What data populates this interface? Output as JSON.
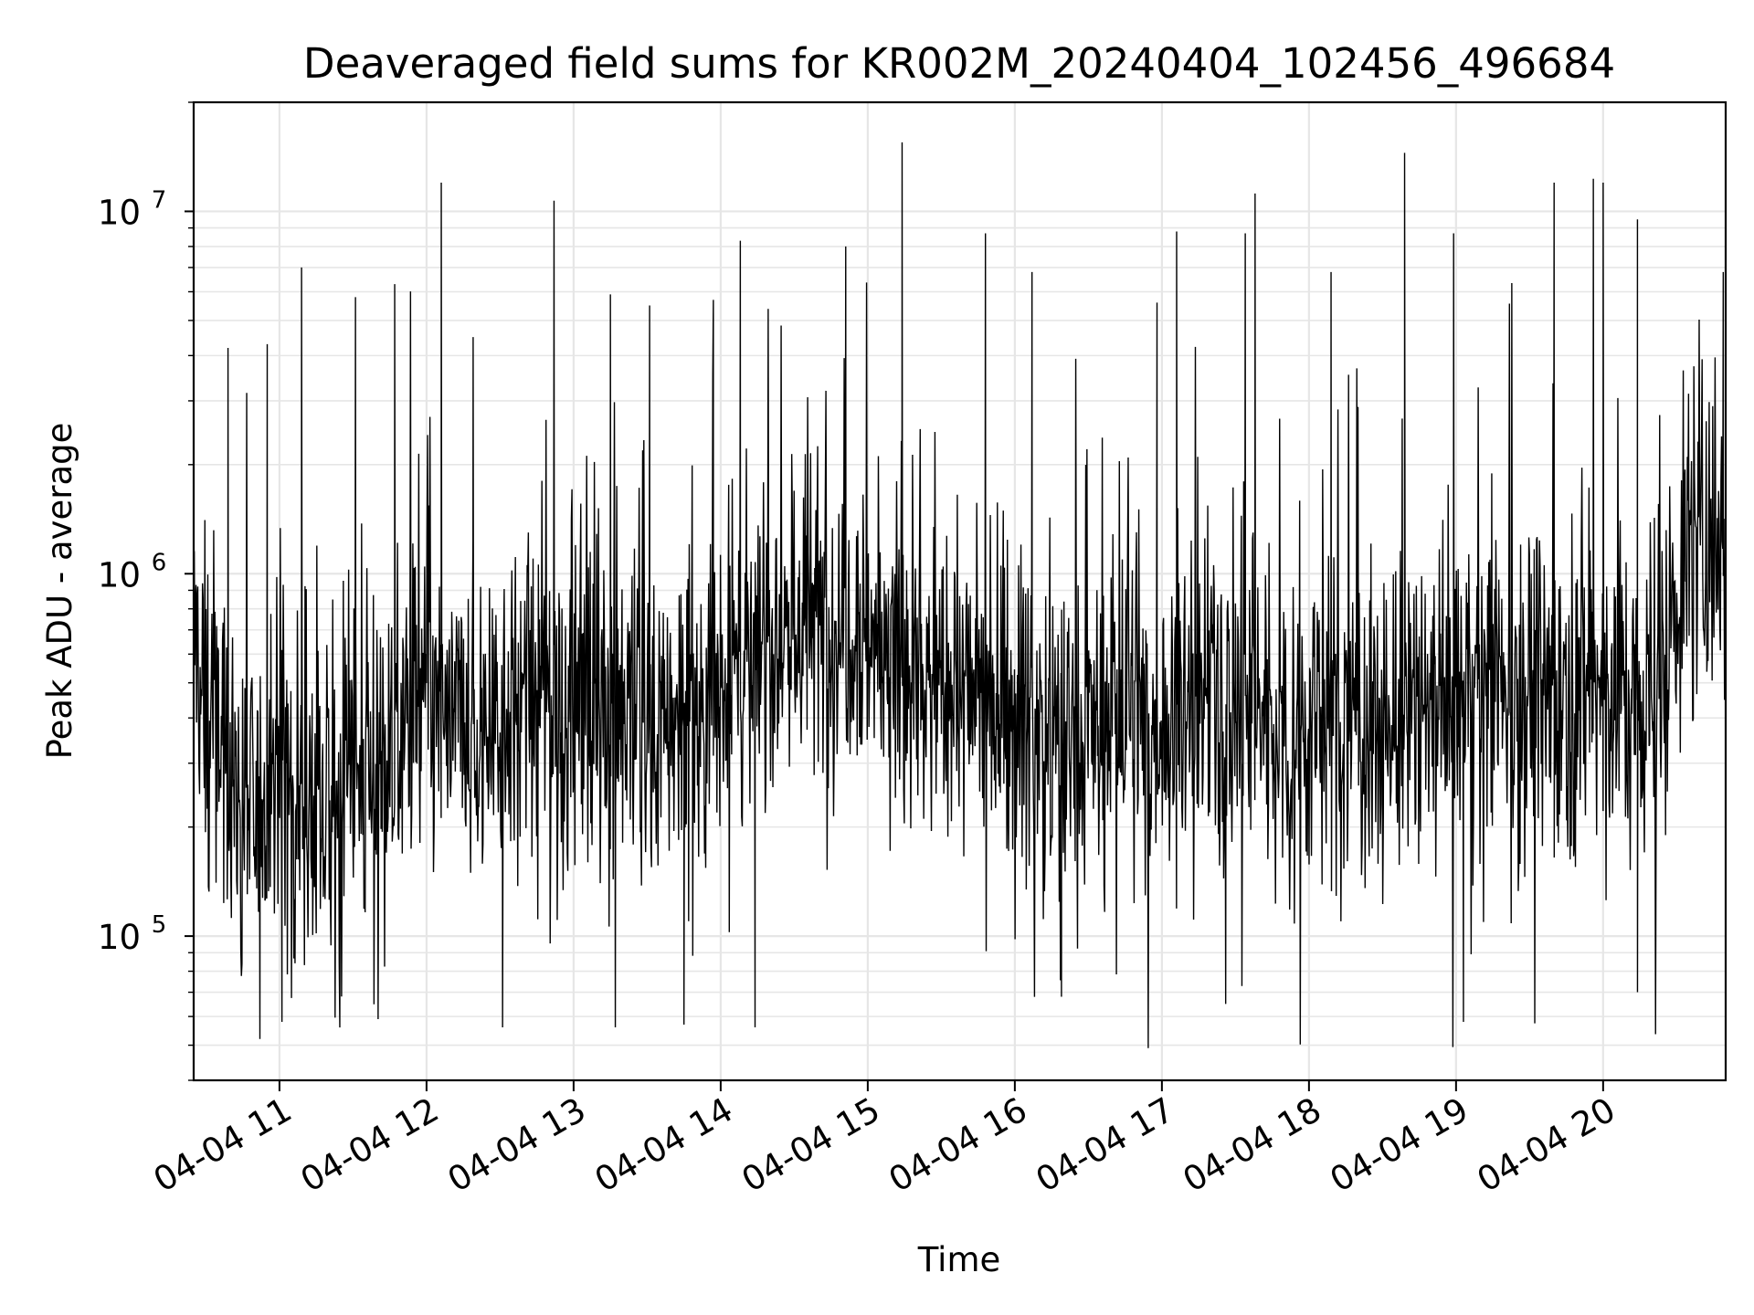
{
  "chart_data": {
    "type": "line",
    "title": "Deaveraged field sums for KR002M_20240404_102456_496684",
    "xlabel": "Time",
    "ylabel": "Peak ADU - average",
    "yscale": "log",
    "xlim": [
      "04-04 10:25",
      "04-04 20:50"
    ],
    "ylim": [
      40000,
      20000000
    ],
    "grid": true,
    "line_color": "#000000",
    "grid_color": "#e6e6e6",
    "x_tick_labels": [
      "04-04 11",
      "04-04 12",
      "04-04 13",
      "04-04 14",
      "04-04 15",
      "04-04 16",
      "04-04 17",
      "04-04 18",
      "04-04 19",
      "04-04 20"
    ],
    "y_tick_labels": [
      {
        "base": "10",
        "exp": "5",
        "value": 100000
      },
      {
        "base": "10",
        "exp": "6",
        "value": 1000000
      },
      {
        "base": "10",
        "exp": "7",
        "value": 10000000
      }
    ],
    "series": [
      {
        "x": [
          "04-04 10:25",
          "04-04 10:30",
          "04-04 10:35",
          "04-04 10:40",
          "04-04 10:45",
          "04-04 10:50",
          "04-04 10:55",
          "04-04 11:00",
          "04-04 11:05",
          "04-04 11:10",
          "04-04 11:15",
          "04-04 11:20",
          "04-04 11:25",
          "04-04 11:30",
          "04-04 11:35",
          "04-04 11:40",
          "04-04 11:45",
          "04-04 11:50",
          "04-04 11:55",
          "04-04 12:00",
          "04-04 12:05",
          "04-04 12:10",
          "04-04 12:15",
          "04-04 12:20",
          "04-04 12:25",
          "04-04 12:30",
          "04-04 12:35",
          "04-04 12:40",
          "04-04 12:45",
          "04-04 12:50",
          "04-04 12:55",
          "04-04 13:00",
          "04-04 13:05",
          "04-04 13:10",
          "04-04 13:15",
          "04-04 13:20",
          "04-04 13:25",
          "04-04 13:30",
          "04-04 13:35",
          "04-04 13:40",
          "04-04 13:45",
          "04-04 13:50",
          "04-04 13:55",
          "04-04 14:00",
          "04-04 14:05",
          "04-04 14:10",
          "04-04 14:15",
          "04-04 14:20",
          "04-04 14:25",
          "04-04 14:30",
          "04-04 14:35",
          "04-04 14:40",
          "04-04 14:45",
          "04-04 14:50",
          "04-04 14:55",
          "04-04 15:00",
          "04-04 15:05",
          "04-04 15:10",
          "04-04 15:15",
          "04-04 15:20",
          "04-04 15:25",
          "04-04 15:30",
          "04-04 15:35",
          "04-04 15:40",
          "04-04 15:45",
          "04-04 15:50",
          "04-04 15:55",
          "04-04 16:00",
          "04-04 16:05",
          "04-04 16:10",
          "04-04 16:15",
          "04-04 16:20",
          "04-04 16:25",
          "04-04 16:30",
          "04-04 16:35",
          "04-04 16:40",
          "04-04 16:45",
          "04-04 16:50",
          "04-04 16:55",
          "04-04 17:00",
          "04-04 17:05",
          "04-04 17:10",
          "04-04 17:15",
          "04-04 17:20",
          "04-04 17:25",
          "04-04 17:30",
          "04-04 17:35",
          "04-04 17:40",
          "04-04 17:45",
          "04-04 17:50",
          "04-04 17:55",
          "04-04 18:00",
          "04-04 18:05",
          "04-04 18:10",
          "04-04 18:15",
          "04-04 18:20",
          "04-04 18:25",
          "04-04 18:30",
          "04-04 18:35",
          "04-04 18:40",
          "04-04 18:45",
          "04-04 18:50",
          "04-04 18:55",
          "04-04 19:00",
          "04-04 19:05",
          "04-04 19:10",
          "04-04 19:15",
          "04-04 19:20",
          "04-04 19:25",
          "04-04 19:30",
          "04-04 19:35",
          "04-04 19:40",
          "04-04 19:45",
          "04-04 19:50",
          "04-04 19:55",
          "04-04 20:00",
          "04-04 20:05",
          "04-04 20:10",
          "04-04 20:15",
          "04-04 20:20",
          "04-04 20:25",
          "04-04 20:30",
          "04-04 20:35",
          "04-04 20:40",
          "04-04 20:45",
          "04-04 20:50"
        ],
        "y": [
          700000,
          420000,
          350000,
          280000,
          240000,
          200000,
          260000,
          300000,
          280000,
          250000,
          230000,
          210000,
          240000,
          300000,
          260000,
          280000,
          320000,
          380000,
          420000,
          450000,
          400000,
          380000,
          360000,
          340000,
          370000,
          420000,
          450000,
          400000,
          430000,
          470000,
          420000,
          400000,
          440000,
          480000,
          450000,
          420000,
          400000,
          380000,
          350000,
          370000,
          400000,
          430000,
          460000,
          480000,
          520000,
          550000,
          600000,
          650000,
          700000,
          720000,
          750000,
          700000,
          720000,
          760000,
          800000,
          700000,
          620000,
          600000,
          560000,
          520000,
          500000,
          480000,
          460000,
          450000,
          470000,
          480000,
          450000,
          420000,
          400000,
          380000,
          350000,
          330000,
          340000,
          360000,
          380000,
          400000,
          420000,
          380000,
          360000,
          370000,
          400000,
          420000,
          430000,
          450000,
          470000,
          450000,
          430000,
          420000,
          400000,
          380000,
          370000,
          360000,
          380000,
          400000,
          420000,
          400000,
          380000,
          370000,
          360000,
          380000,
          400000,
          420000,
          440000,
          460000,
          480000,
          500000,
          520000,
          540000,
          500000,
          480000,
          470000,
          460000,
          480000,
          500000,
          520000,
          500000,
          480000,
          460000,
          440000,
          420000,
          500000,
          900000,
          1100000,
          1200000,
          1300000,
          1500000
        ],
        "spikes": [
          {
            "x": "04-04 10:39",
            "y": 4200000
          },
          {
            "x": "04-04 10:55",
            "y": 4300000
          },
          {
            "x": "04-04 11:09",
            "y": 7000000
          },
          {
            "x": "04-04 11:31",
            "y": 5800000
          },
          {
            "x": "04-04 11:47",
            "y": 6300000
          },
          {
            "x": "04-04 12:06",
            "y": 12000000
          },
          {
            "x": "04-04 12:19",
            "y": 4500000
          },
          {
            "x": "04-04 12:52",
            "y": 10700000
          },
          {
            "x": "04-04 13:15",
            "y": 5900000
          },
          {
            "x": "04-04 13:31",
            "y": 5500000
          },
          {
            "x": "04-04 13:57",
            "y": 5700000
          },
          {
            "x": "04-04 14:08",
            "y": 8300000
          },
          {
            "x": "04-04 14:51",
            "y": 8000000
          },
          {
            "x": "04-04 15:14",
            "y": 15500000
          },
          {
            "x": "04-04 15:48",
            "y": 8700000
          },
          {
            "x": "04-04 16:07",
            "y": 6800000
          },
          {
            "x": "04-04 16:58",
            "y": 5600000
          },
          {
            "x": "04-04 17:06",
            "y": 8800000
          },
          {
            "x": "04-04 17:34",
            "y": 8700000
          },
          {
            "x": "04-04 17:38",
            "y": 11200000
          },
          {
            "x": "04-04 18:09",
            "y": 6800000
          },
          {
            "x": "04-04 18:39",
            "y": 14500000
          },
          {
            "x": "04-04 18:59",
            "y": 8700000
          },
          {
            "x": "04-04 19:40",
            "y": 12000000
          },
          {
            "x": "04-04 19:56",
            "y": 12300000
          },
          {
            "x": "04-04 20:00",
            "y": 12000000
          },
          {
            "x": "04-04 20:14",
            "y": 9500000
          },
          {
            "x": "04-04 20:49",
            "y": 6800000
          }
        ],
        "dips": [
          {
            "x": "04-04 10:52",
            "y": 52000
          },
          {
            "x": "04-04 11:01",
            "y": 58000
          },
          {
            "x": "04-04 12:31",
            "y": 56000
          },
          {
            "x": "04-04 13:17",
            "y": 56000
          },
          {
            "x": "04-04 13:45",
            "y": 57000
          },
          {
            "x": "04-04 14:14",
            "y": 56000
          },
          {
            "x": "04-04 16:19",
            "y": 68000
          },
          {
            "x": "04-04 17:26",
            "y": 65000
          },
          {
            "x": "04-04 19:03",
            "y": 58000
          },
          {
            "x": "04-04 20:14",
            "y": 70000
          }
        ]
      }
    ]
  }
}
